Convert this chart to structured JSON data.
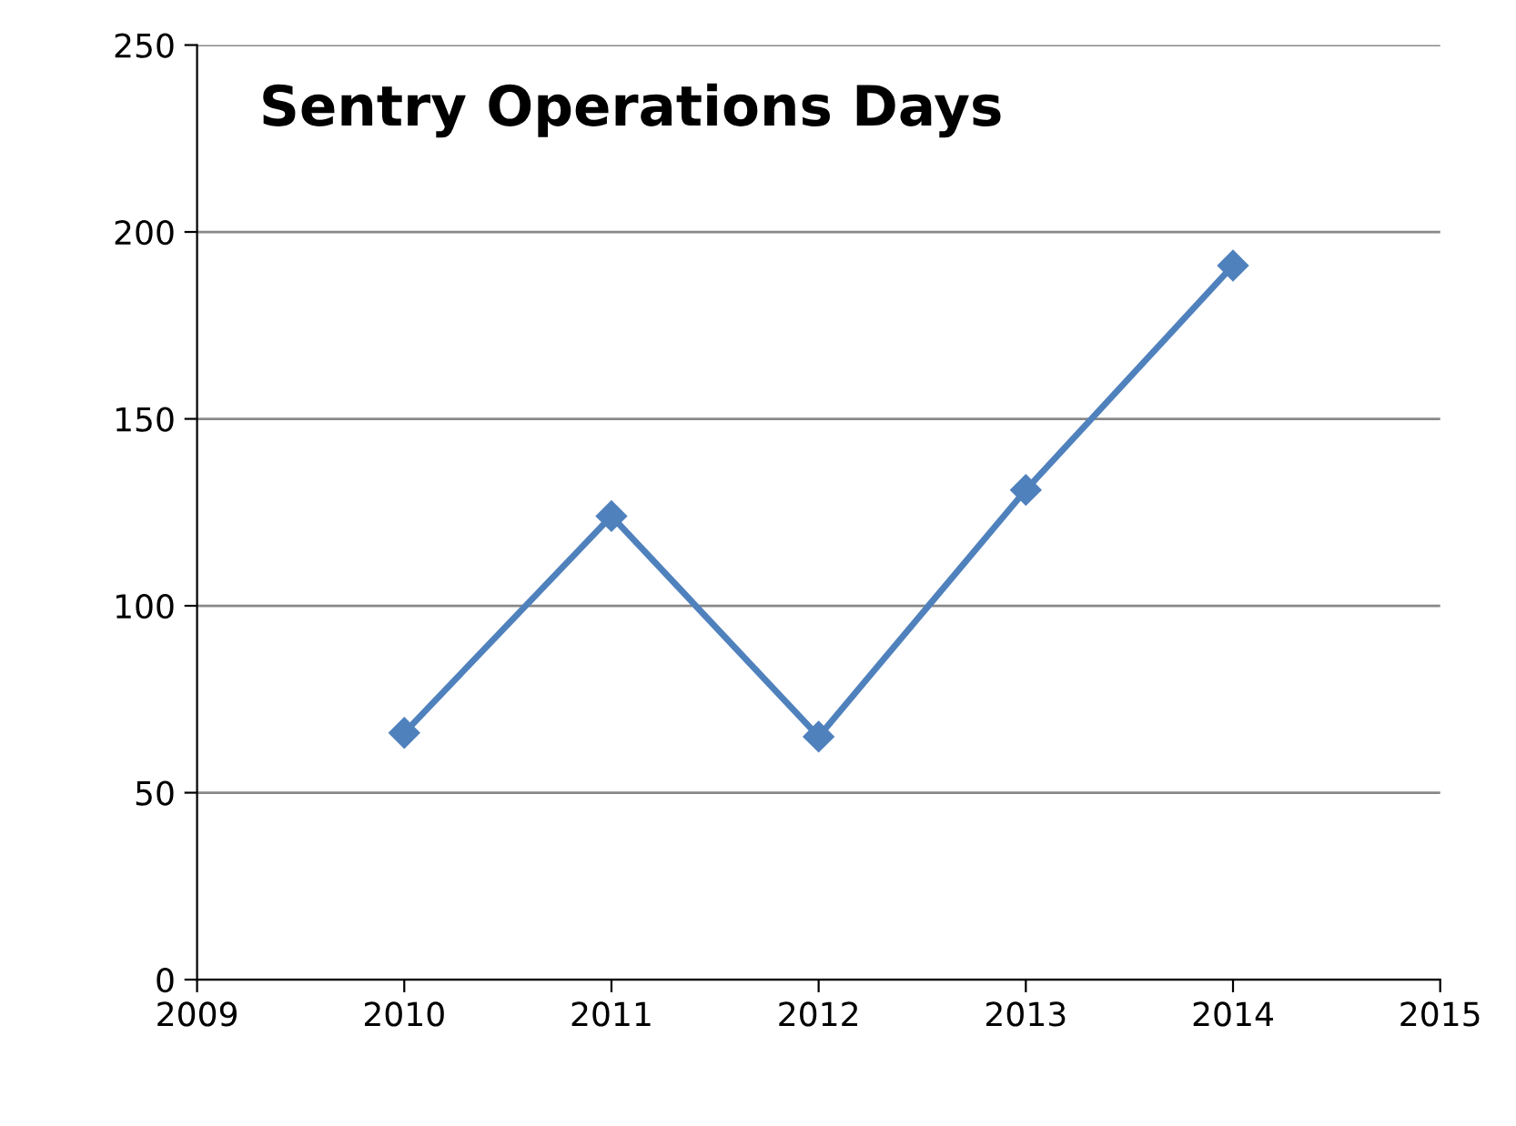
{
  "chart_data": {
    "type": "line",
    "title": "Sentry Operations Days",
    "x": [
      2010,
      2011,
      2012,
      2013,
      2014
    ],
    "series": [
      {
        "color": "#4f81bd",
        "values": [
          66,
          124,
          65,
          131,
          191
        ]
      }
    ],
    "xlim": [
      2009,
      2015
    ],
    "xticks": [
      2009,
      2010,
      2011,
      2012,
      2013,
      2014,
      2015
    ],
    "ylim": [
      0,
      250
    ],
    "yticks": [
      0,
      50,
      100,
      150,
      200,
      250
    ],
    "grid": "y",
    "marker": "diamond",
    "line_style": "solid",
    "legend": false
  }
}
